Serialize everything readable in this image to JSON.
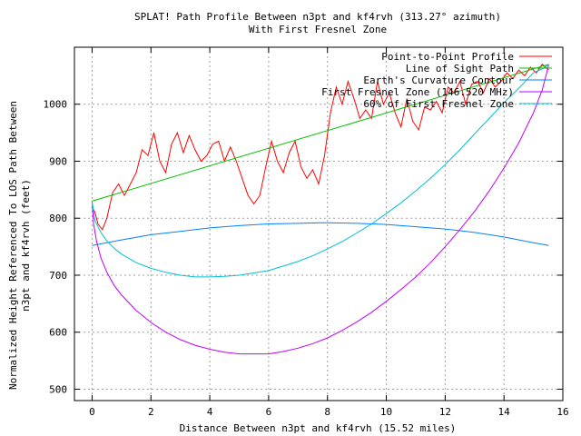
{
  "chart_data": {
    "type": "line",
    "title_line1": "SPLAT! Path Profile Between n3pt and kf4rvh (313.27° azimuth)",
    "title_line2": "With First Fresnel Zone",
    "xlabel": "Distance Between n3pt and kf4rvh (15.52 miles)",
    "ylabel_line1": "Normalized Height Referenced To LOS Path Between",
    "ylabel_line2": "n3pt and kf4rvh (feet)",
    "xlim": [
      -0.6,
      16
    ],
    "ylim": [
      480,
      1100
    ],
    "x_ticks": [
      0,
      2,
      4,
      6,
      8,
      10,
      12,
      14,
      16
    ],
    "y_ticks": [
      500,
      600,
      700,
      800,
      900,
      1000
    ],
    "grid": true,
    "legend_position": "top-right",
    "series": [
      {
        "name": "Point-to-Point Profile",
        "color": "#ff0000",
        "x": [
          0,
          0.1,
          0.2,
          0.35,
          0.5,
          0.7,
          0.9,
          1.1,
          1.3,
          1.5,
          1.7,
          1.9,
          2.1,
          2.3,
          2.5,
          2.7,
          2.9,
          3.1,
          3.3,
          3.5,
          3.7,
          3.9,
          4.1,
          4.3,
          4.5,
          4.7,
          4.9,
          5.1,
          5.3,
          5.5,
          5.7,
          5.9,
          6.1,
          6.3,
          6.5,
          6.7,
          6.9,
          7.1,
          7.3,
          7.5,
          7.7,
          7.9,
          8.1,
          8.3,
          8.5,
          8.7,
          8.9,
          9.1,
          9.3,
          9.5,
          9.7,
          9.9,
          10.1,
          10.3,
          10.5,
          10.7,
          10.9,
          11.1,
          11.3,
          11.5,
          11.7,
          11.9,
          12.1,
          12.3,
          12.5,
          12.7,
          12.9,
          13.1,
          13.3,
          13.5,
          13.7,
          13.9,
          14.1,
          14.3,
          14.5,
          14.7,
          14.9,
          15.1,
          15.3,
          15.52
        ],
        "y": [
          820,
          810,
          790,
          780,
          800,
          845,
          860,
          840,
          860,
          880,
          920,
          910,
          950,
          900,
          880,
          930,
          950,
          915,
          945,
          920,
          900,
          910,
          930,
          935,
          900,
          925,
          900,
          870,
          840,
          825,
          840,
          890,
          935,
          900,
          880,
          915,
          935,
          890,
          870,
          885,
          860,
          910,
          985,
          1030,
          1000,
          1040,
          1010,
          975,
          990,
          975,
          1040,
          1000,
          1020,
          985,
          960,
          1010,
          970,
          955,
          995,
          990,
          1005,
          985,
          1030,
          1020,
          1040,
          1000,
          1035,
          1040,
          1020,
          1045,
          1030,
          1040,
          1055,
          1045,
          1060,
          1050,
          1065,
          1055,
          1070,
          1060
        ]
      },
      {
        "name": "Line of Sight Path",
        "color": "#00c000",
        "x": [
          0,
          15.52
        ],
        "y": [
          830,
          1070
        ]
      },
      {
        "name": "Earth's Curvature Contour",
        "color": "#0080ff",
        "x": [
          0,
          1,
          2,
          3,
          4,
          5,
          6,
          7,
          7.76,
          8,
          9,
          10,
          11,
          12,
          13,
          14,
          15,
          15.52
        ],
        "y": [
          752,
          762,
          771,
          777,
          783,
          787,
          790,
          791,
          792,
          792,
          791,
          789,
          785,
          781,
          775,
          767,
          757,
          752
        ]
      },
      {
        "name": "First Fresnel Zone (146.520 MHz)",
        "color": "#c000ff",
        "x": [
          0,
          0.05,
          0.15,
          0.3,
          0.5,
          0.75,
          1,
          1.5,
          2,
          2.5,
          3,
          3.5,
          4,
          4.5,
          5,
          5.5,
          6,
          6.5,
          7,
          7.5,
          8,
          8.5,
          9,
          9.5,
          10,
          10.5,
          11,
          11.5,
          12,
          12.5,
          13,
          13.5,
          14,
          14.5,
          15,
          15.3,
          15.45,
          15.52
        ],
        "y": [
          830,
          790,
          760,
          730,
          705,
          682,
          665,
          638,
          617,
          600,
          587,
          577,
          570,
          565,
          562,
          562,
          562,
          566,
          572,
          580,
          590,
          603,
          618,
          635,
          654,
          675,
          697,
          722,
          750,
          780,
          812,
          848,
          888,
          932,
          985,
          1025,
          1055,
          1070
        ]
      },
      {
        "name": "60% of First Fresnel Zone",
        "color": "#00c0d0",
        "x": [
          0,
          0.1,
          0.3,
          0.5,
          0.8,
          1,
          1.5,
          2,
          2.5,
          3,
          3.5,
          4,
          4.5,
          5,
          5.5,
          6,
          6.5,
          7,
          7.5,
          8,
          8.5,
          9,
          9.5,
          10,
          10.5,
          11,
          11.5,
          12,
          12.5,
          13,
          13.5,
          14,
          14.5,
          15,
          15.3,
          15.52
        ],
        "y": [
          830,
          795,
          775,
          760,
          745,
          737,
          722,
          712,
          705,
          700,
          697,
          697,
          698,
          700,
          704,
          708,
          716,
          724,
          734,
          746,
          759,
          774,
          790,
          808,
          827,
          848,
          870,
          894,
          920,
          948,
          975,
          1003,
          1028,
          1055,
          1062,
          1070
        ]
      }
    ]
  }
}
